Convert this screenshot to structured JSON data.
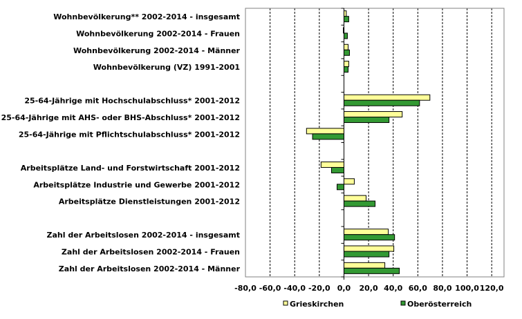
{
  "chart_data": {
    "type": "bar",
    "orientation": "horizontal",
    "categories": [
      "Wohnbevölkerung** 2002-2014 - insgesamt",
      "Wohnbevölkerung 2002-2014 - Frauen",
      "Wohnbevölkerung 2002-2014 - Männer",
      "Wohnbevölkerung (VZ) 1991-2001",
      "",
      "25-64-Jährige mit Hochschulabschluss* 2001-2012",
      "25-64-Jährige mit AHS- oder BHS-Abschluss* 2001-2012",
      "25-64-Jährige mit Pflichtschulabschluss* 2001-2012",
      "",
      "Arbeitsplätze Land- und Forstwirtschaft 2001-2012",
      "Arbeitsplätze Industrie und Gewerbe 2001-2012",
      "Arbeitsplätze Dienstleistungen 2001-2012",
      "",
      "Zahl der Arbeitslosen 2002-2014 - insgesamt",
      "Zahl der Arbeitslosen 2002-2014 - Frauen",
      "Zahl der Arbeitslosen 2002-2014 - Männer"
    ],
    "series": [
      {
        "name": "Grieskirchen",
        "color": "#ffff99",
        "values": [
          1.9,
          -0.5,
          3.4,
          3.9,
          null,
          69.8,
          47.3,
          -30.4,
          null,
          -18.6,
          8.4,
          18.0,
          null,
          36.0,
          40.5,
          33.2
        ]
      },
      {
        "name": "Oberösterreich",
        "color": "#339933",
        "values": [
          3.9,
          2.8,
          4.5,
          3.4,
          null,
          61.4,
          36.6,
          -25.5,
          null,
          -10.1,
          -5.6,
          25.3,
          null,
          41.1,
          36.6,
          45.0
        ]
      }
    ],
    "xlim": [
      -80,
      130
    ],
    "xticks": [
      -80,
      -60,
      -40,
      -20,
      0,
      20,
      40,
      60,
      80,
      100,
      120
    ],
    "xtick_labels": [
      "-80,0",
      "-60,0",
      "-40,0",
      "-20,0",
      "0,0",
      "20,0",
      "40,0",
      "60,0",
      "80,0",
      "100,0",
      "120,0"
    ],
    "grid": true,
    "legend": "bottom",
    "title": "",
    "xlabel": "",
    "ylabel": ""
  }
}
